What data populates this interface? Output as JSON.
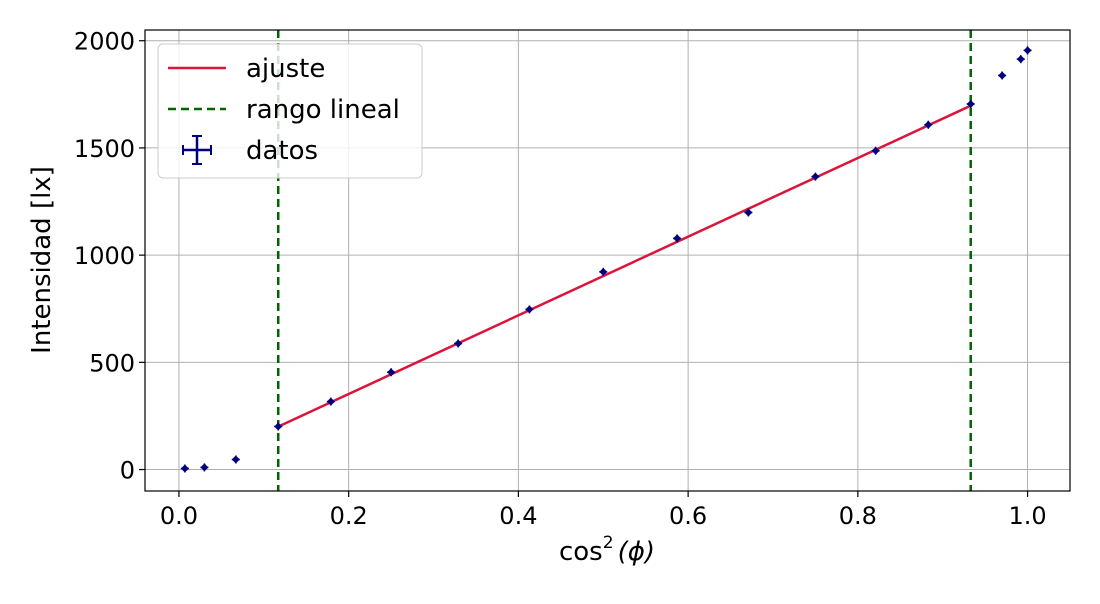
{
  "chart_data": {
    "type": "scatter",
    "title": "",
    "xlabel": "cos",
    "xlabel_sup": "2",
    "xlabel_tail": "(ϕ)",
    "ylabel": "Intensidad [lx]",
    "xlim": [
      -0.04,
      1.05
    ],
    "ylim": [
      -100,
      2050
    ],
    "xticks": [
      0.0,
      0.2,
      0.4,
      0.6,
      0.8,
      1.0
    ],
    "xtick_labels": [
      "0.0",
      "0.2",
      "0.4",
      "0.6",
      "0.8",
      "1.0"
    ],
    "yticks": [
      0,
      500,
      1000,
      1500,
      2000
    ],
    "ytick_labels": [
      "0",
      "500",
      "1000",
      "1500",
      "2000"
    ],
    "grid": true,
    "legend_position": "top-left",
    "series": [
      {
        "name": "datos",
        "kind": "errorbar",
        "color": "#00007f",
        "x": [
          0.007,
          0.03,
          0.067,
          0.117,
          0.179,
          0.25,
          0.329,
          0.413,
          0.5,
          0.587,
          0.671,
          0.75,
          0.821,
          0.883,
          0.933,
          0.97,
          0.992,
          1.0
        ],
        "y": [
          5,
          10,
          47,
          201,
          317,
          454,
          588,
          747,
          922,
          1078,
          1199,
          1366,
          1487,
          1608,
          1705,
          1838,
          1914,
          1955
        ]
      },
      {
        "name": "ajuste",
        "kind": "line",
        "color": "#dc143c",
        "x": [
          0.117,
          0.933
        ],
        "y": [
          200,
          1697
        ]
      },
      {
        "name": "rango lineal",
        "kind": "vline",
        "color": "#006400",
        "dash": "dashed",
        "x": [
          0.117,
          0.933
        ]
      }
    ]
  }
}
